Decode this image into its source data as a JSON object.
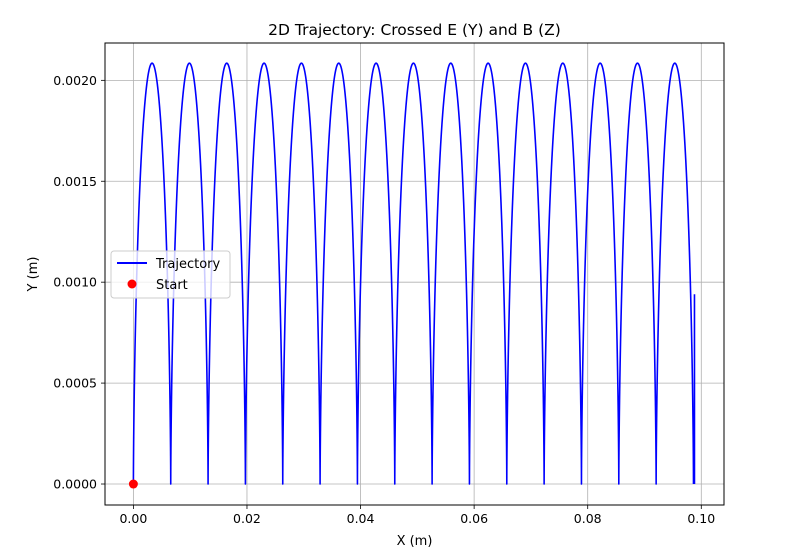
{
  "chart_data": {
    "type": "line",
    "title": "2D Trajectory: Crossed E (Y) and B (Z)",
    "xlabel": "X (m)",
    "ylabel": "Y (m)",
    "xlim": [
      -0.005,
      0.104
    ],
    "ylim": [
      -0.000104,
      0.002185
    ],
    "x_ticks": [
      0.0,
      0.02,
      0.04,
      0.06,
      0.08,
      0.1
    ],
    "x_tick_labels": [
      "0.00",
      "0.02",
      "0.04",
      "0.06",
      "0.08",
      "0.10"
    ],
    "y_ticks": [
      0.0,
      0.0005,
      0.001,
      0.0015,
      0.002
    ],
    "y_tick_labels": [
      "0.0000",
      "0.0005",
      "0.0010",
      "0.0015",
      "0.0020"
    ],
    "grid": true,
    "legend_position": "center-left",
    "series": [
      {
        "name": "Trajectory",
        "kind": "cycloid",
        "color": "#0000ff",
        "arch_count": 15,
        "arch_period_x": 0.006575,
        "peak_y": 0.002085,
        "x_start": 0.0,
        "x_end": 0.0988,
        "y_end": 0.00094
      },
      {
        "name": "Start",
        "kind": "marker",
        "color": "#ff0000",
        "points": [
          {
            "x": 0.0,
            "y": 0.0
          }
        ]
      }
    ]
  }
}
